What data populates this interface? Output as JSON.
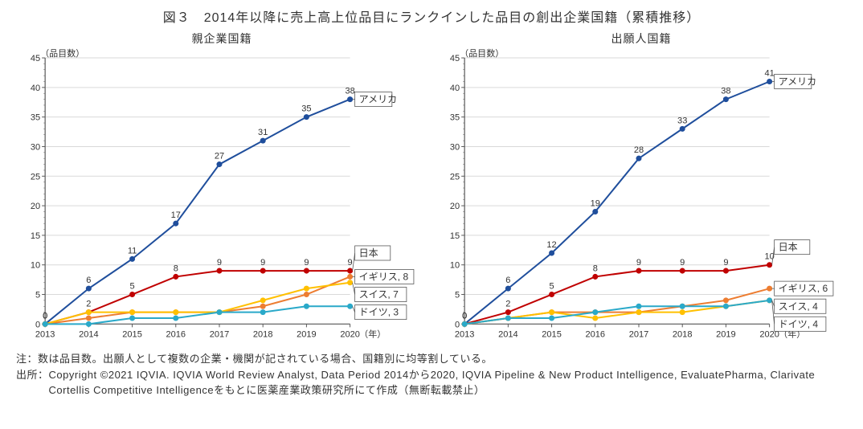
{
  "title": "図３　2014年以降に売上高上位品目にランクインした品目の創出企業国籍（累積推移）",
  "xaxis": {
    "label": "（年）",
    "ticks": [
      2013,
      2014,
      2015,
      2016,
      2017,
      2018,
      2019,
      2020
    ]
  },
  "yaxis": {
    "label": "（品目数）",
    "min": 0,
    "max": 45,
    "step": 5,
    "minor_step": 1,
    "grid_color": "#d9d9d9",
    "axis_color": "#595959"
  },
  "chart_left": {
    "title": "親企業国籍",
    "series": [
      {
        "key": "america",
        "label": "アメリカ",
        "color": "#1f4e9c",
        "values": [
          0,
          6,
          11,
          17,
          27,
          31,
          35,
          38
        ],
        "callouts": [
          {
            "i": 7,
            "text": "アメリカ"
          }
        ]
      },
      {
        "key": "japan",
        "label": "日本",
        "color": "#c00000",
        "values": [
          0,
          2,
          5,
          8,
          9,
          9,
          9,
          9
        ],
        "callouts": [
          {
            "i": 7,
            "text": "日本",
            "boxed": true,
            "offsetY": -22
          }
        ]
      },
      {
        "key": "uk",
        "label": "イギリス",
        "color": "#ed7d31",
        "values": [
          0,
          1,
          2,
          2,
          2,
          3,
          5,
          8
        ],
        "callouts": [
          {
            "i": 7,
            "text": "イギリス, 8"
          }
        ]
      },
      {
        "key": "swiss",
        "label": "スイス",
        "color": "#ffc000",
        "values": [
          0,
          2,
          2,
          2,
          2,
          4,
          6,
          7
        ],
        "callouts": [
          {
            "i": 7,
            "text": "スイス, 7"
          }
        ]
      },
      {
        "key": "germany",
        "label": "ドイツ",
        "color": "#2aa9c9",
        "values": [
          0,
          0,
          1,
          1,
          2,
          2,
          3,
          3
        ],
        "callouts": [
          {
            "i": 7,
            "text": "ドイツ, 3"
          }
        ]
      }
    ]
  },
  "chart_right": {
    "title": "出願人国籍",
    "series": [
      {
        "key": "america",
        "label": "アメリカ",
        "color": "#1f4e9c",
        "values": [
          0,
          6,
          12,
          19,
          28,
          33,
          38,
          41
        ],
        "callouts": [
          {
            "i": 7,
            "text": "アメリカ"
          }
        ]
      },
      {
        "key": "japan",
        "label": "日本",
        "color": "#c00000",
        "values": [
          0,
          2,
          5,
          8,
          9,
          9,
          9,
          10
        ],
        "callouts": [
          {
            "i": 7,
            "text": "日本",
            "boxed": true,
            "offsetY": -22
          }
        ]
      },
      {
        "key": "uk",
        "label": "イギリス",
        "color": "#ed7d31",
        "values": [
          0,
          1,
          2,
          2,
          2,
          3,
          4,
          6
        ],
        "callouts": [
          {
            "i": 7,
            "text": "イギリス, 6"
          }
        ]
      },
      {
        "key": "swiss",
        "label": "スイス",
        "color": "#ffc000",
        "values": [
          0,
          1,
          2,
          1,
          2,
          2,
          3,
          4
        ],
        "callouts": [
          {
            "i": 7,
            "text": "スイス, 4"
          }
        ]
      },
      {
        "key": "germany",
        "label": "ドイツ",
        "color": "#2aa9c9",
        "values": [
          0,
          1,
          1,
          2,
          3,
          3,
          3,
          4
        ],
        "callouts": [
          {
            "i": 7,
            "text": "ドイツ, 4"
          }
        ]
      }
    ]
  },
  "style": {
    "line_width": 2,
    "marker_radius": 3.5,
    "datalabel_font": 11,
    "axis_font": 11,
    "title_font": 14,
    "callout_box_stroke": "#595959",
    "callout_box_fill": "#ffffff",
    "callout_font": 12
  },
  "notes": {
    "note_label": "注：",
    "note_text": "数は品目数。出願人として複数の企業・機関が記されている場合、国籍別に均等割している。",
    "source_label": "出所：",
    "source_text": "Copyright ©2021 IQVIA. IQVIA World Review Analyst, Data Period 2014から2020, IQVIA Pipeline & New Product Intelligence, EvaluatePharma, Clarivate Cortellis Competitive Intelligenceをもとに医薬産業政策研究所にて作成（無断転載禁止）"
  }
}
